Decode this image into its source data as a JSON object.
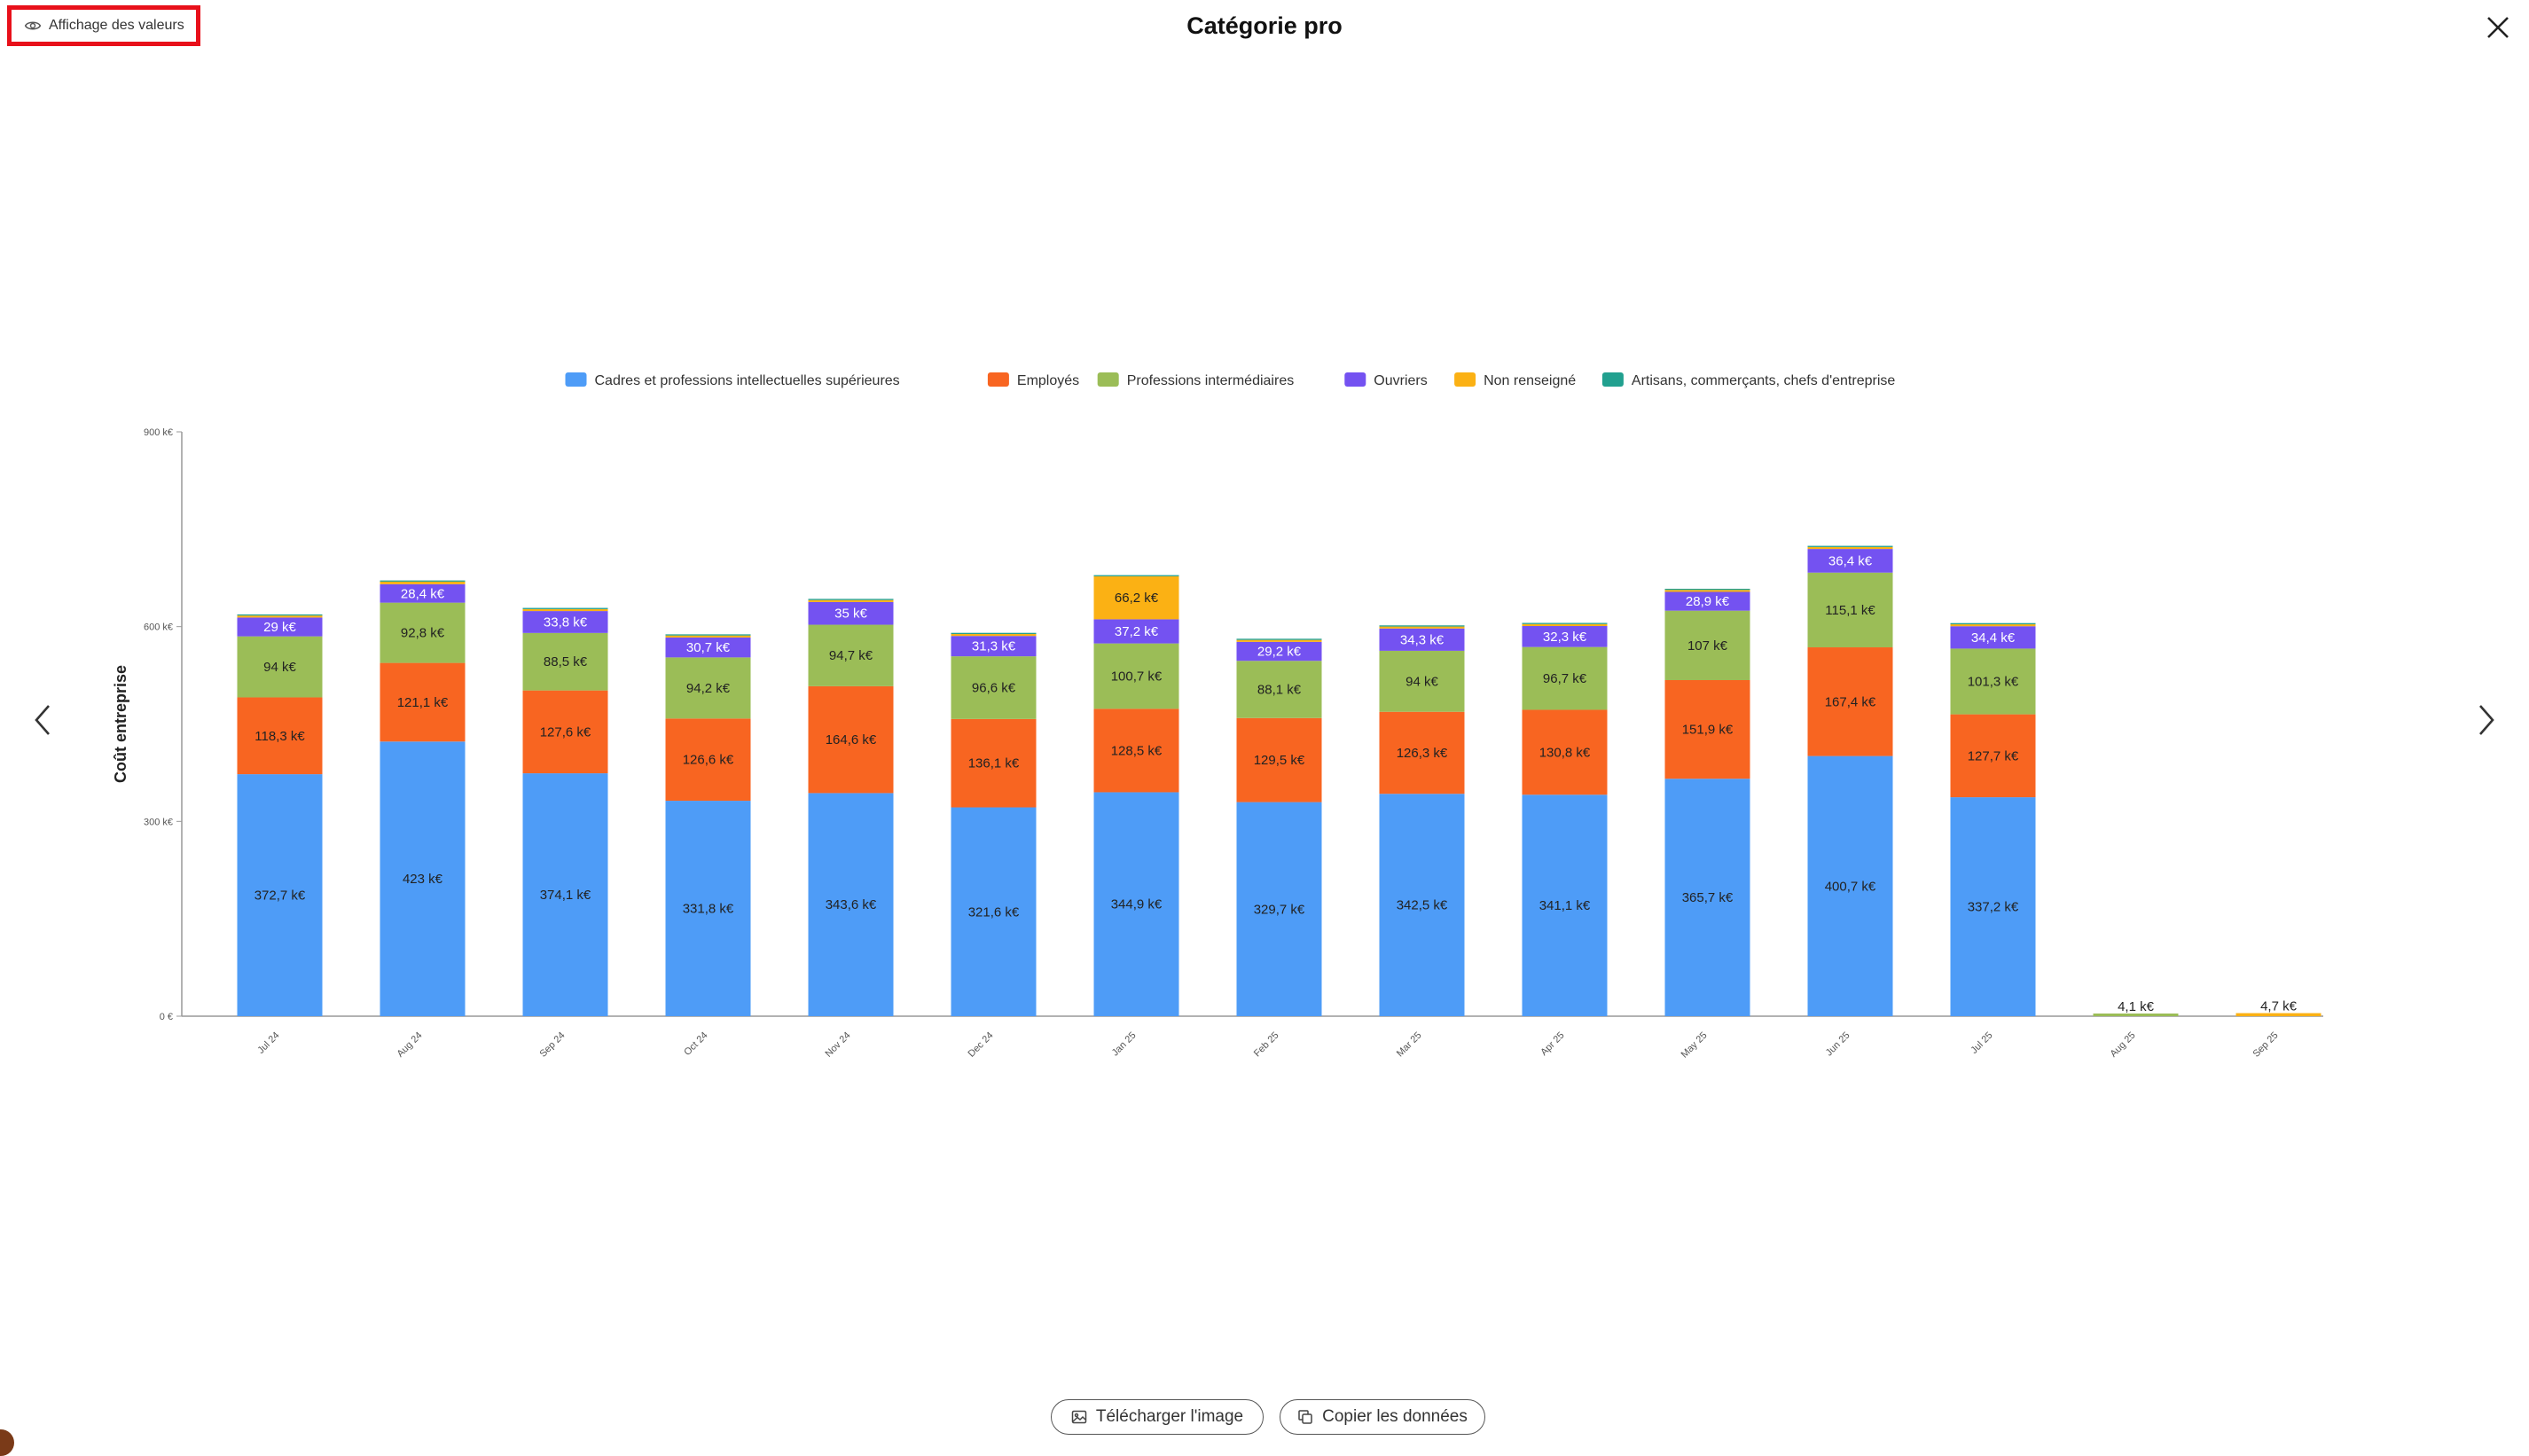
{
  "toolbar": {
    "toggle_label": "Affichage des valeurs"
  },
  "title": "Catégorie pro",
  "footer": {
    "download_label": "Télécharger l'image",
    "copy_label": "Copier les données"
  },
  "colors": {
    "cadres": "#4e9cf7",
    "employes": "#f86521",
    "intermediaires": "#9bbd57",
    "ouvriers": "#7452f1",
    "non_renseigne": "#fbb114",
    "artisans": "#21a08f"
  },
  "chart_data": {
    "type": "bar",
    "stacked": true,
    "ylabel": "Coût entreprise",
    "ylim": [
      0,
      900
    ],
    "yticks": [
      "0 €",
      "300 k€",
      "600 k€",
      "900 k€"
    ],
    "categories": [
      "Jul 24",
      "Aug 24",
      "Sep 24",
      "Oct 24",
      "Nov 24",
      "Dec 24",
      "Jan 25",
      "Feb 25",
      "Mar 25",
      "Apr 25",
      "May 25",
      "Jun 25",
      "Jul 25",
      "Aug 25",
      "Sep 25"
    ],
    "legend_position": "top-center",
    "series": [
      {
        "name": "Cadres et professions intellectuelles supérieures",
        "color": "#4e9cf7",
        "values": [
          372.7,
          423,
          374.1,
          331.8,
          343.6,
          321.6,
          344.9,
          329.7,
          342.5,
          341.1,
          365.7,
          400.7,
          337.2,
          0,
          0
        ],
        "labels": [
          "372,7 k€",
          "423 k€",
          "374,1 k€",
          "331,8 k€",
          "343,6 k€",
          "321,6 k€",
          "344,9 k€",
          "329,7 k€",
          "342,5 k€",
          "341,1 k€",
          "365,7 k€",
          "400,7 k€",
          "337,2 k€",
          "",
          ""
        ]
      },
      {
        "name": "Employés",
        "color": "#f86521",
        "values": [
          118.3,
          121.1,
          127.6,
          126.6,
          164.6,
          136.1,
          128.5,
          129.5,
          126.3,
          130.8,
          151.9,
          167.4,
          127.7,
          0,
          0
        ],
        "labels": [
          "118,3 k€",
          "121,1 k€",
          "127,6 k€",
          "126,6 k€",
          "164,6 k€",
          "136,1 k€",
          "128,5 k€",
          "129,5 k€",
          "126,3 k€",
          "130,8 k€",
          "151,9 k€",
          "167,4 k€",
          "127,7 k€",
          "",
          ""
        ]
      },
      {
        "name": "Professions intermédiaires",
        "color": "#9bbd57",
        "values": [
          94,
          92.8,
          88.5,
          94.2,
          94.7,
          96.6,
          100.7,
          88.1,
          94,
          96.7,
          107,
          115.1,
          101.3,
          4.1,
          0
        ],
        "labels": [
          "94 k€",
          "92,8 k€",
          "88,5 k€",
          "94,2 k€",
          "94,7 k€",
          "96,6 k€",
          "100,7 k€",
          "88,1 k€",
          "94 k€",
          "96,7 k€",
          "107 k€",
          "115,1 k€",
          "101,3 k€",
          "4,1 k€",
          ""
        ]
      },
      {
        "name": "Ouvriers",
        "color": "#7452f1",
        "values": [
          29,
          28.4,
          33.8,
          30.7,
          35,
          31.3,
          37.2,
          29.2,
          34.3,
          32.3,
          28.9,
          36.4,
          34.4,
          0,
          0
        ],
        "labels": [
          "29 k€",
          "28,4 k€",
          "33,8 k€",
          "30,7 k€",
          "35 k€",
          "31,3 k€",
          "37,2 k€",
          "29,2 k€",
          "34,3 k€",
          "32,3 k€",
          "28,9 k€",
          "36,4 k€",
          "34,4 k€",
          "",
          ""
        ]
      },
      {
        "name": "Non renseigné",
        "color": "#fbb114",
        "values": [
          3,
          4,
          3,
          3,
          3,
          3,
          66.2,
          3,
          3,
          3,
          3,
          3,
          3,
          0,
          4.7
        ],
        "labels": [
          "",
          "",
          "",
          "",
          "",
          "",
          "66,2 k€",
          "",
          "",
          "",
          "",
          "",
          "",
          "",
          "4,7 k€"
        ]
      },
      {
        "name": "Artisans, commerçants, chefs d'entreprise",
        "color": "#21a08f",
        "values": [
          1.8,
          1.8,
          1.8,
          1.8,
          1.8,
          1.8,
          1.8,
          1.8,
          1.8,
          1.8,
          1.8,
          1.8,
          1.8,
          0,
          0
        ],
        "labels": [
          "",
          "",
          "",
          "",
          "",
          "",
          "",
          "",
          "",
          "",
          "",
          "",
          "",
          "",
          ""
        ]
      }
    ]
  }
}
